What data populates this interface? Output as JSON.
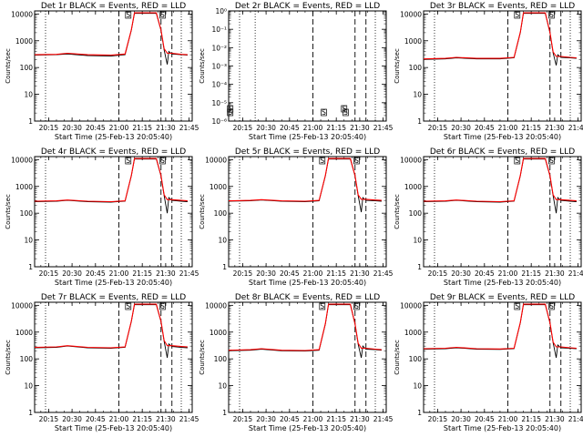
{
  "chart_data": [
    {
      "type": "line",
      "title": "Det 1r BLACK = Events, RED = LLD",
      "xlabel": "Start Time (25-Feb-13 20:05:40)",
      "ylabel": "Counts/sec",
      "ylog": true,
      "ylim": [
        1,
        13000
      ],
      "xlim": [
        "20:06",
        "21:47"
      ],
      "xticks": [
        "20:15",
        "20:30",
        "20:45",
        "21:00",
        "21:15",
        "21:30",
        "21:45"
      ],
      "yticks": [
        "1",
        "10",
        "100",
        "1000",
        "10000"
      ],
      "has_data": true,
      "dotted_lines": [
        "20:13",
        "21:40"
      ],
      "dashed_lines": [
        "21:00",
        "21:27",
        "21:34"
      ],
      "flare_markers": [
        "21:06",
        "21:28"
      ],
      "marker_symbols": [
        "S",
        "S"
      ],
      "series": [
        {
          "name": "BLACK = Events",
          "color": "#000000",
          "x": [
            "20:06",
            "20:20",
            "20:27",
            "20:40",
            "20:55",
            "21:04",
            "21:08",
            "21:10",
            "21:24",
            "21:27",
            "21:29",
            "21:31",
            "21:32",
            "21:34",
            "21:40",
            "21:44"
          ],
          "y": [
            290,
            300,
            320,
            280,
            270,
            300,
            2500,
            10500,
            10500,
            2500,
            450,
            130,
            400,
            320,
            300,
            290
          ]
        },
        {
          "name": "RED = LLD",
          "color": "#ff0000",
          "x": [
            "20:06",
            "20:20",
            "20:27",
            "20:40",
            "20:55",
            "21:04",
            "21:08",
            "21:10",
            "21:24",
            "21:27",
            "21:29",
            "21:31",
            "21:34",
            "21:40",
            "21:44"
          ],
          "y": [
            300,
            310,
            340,
            300,
            290,
            320,
            2600,
            11000,
            11000,
            2600,
            500,
            340,
            340,
            310,
            300
          ]
        }
      ]
    },
    {
      "type": "line",
      "title": "Det 2r BLACK = Events, RED = LLD",
      "xlabel": "Start Time (25-Feb-13 20:05:40)",
      "ylabel": "Counts/sec",
      "ylog": true,
      "ylim": [
        "1e-6",
        "1e0"
      ],
      "xlim": [
        "20:06",
        "21:47"
      ],
      "xticks": [
        "20:15",
        "20:30",
        "20:45",
        "21:00",
        "21:15",
        "21:30",
        "21:45"
      ],
      "yticks": [
        "10⁻⁶",
        "10⁻⁵",
        "10⁻⁴",
        "10⁻³",
        "10⁻²",
        "10⁻¹",
        "10⁰"
      ],
      "has_data": false,
      "dotted_lines": [
        "20:13",
        "20:23",
        "21:40"
      ],
      "dashed_lines": [
        "21:00",
        "21:27",
        "21:34"
      ],
      "flare_markers": [
        "20:07",
        "20:07",
        "21:07",
        "21:20",
        "21:21"
      ],
      "marker_symbols": [
        "S",
        "S",
        "S",
        "S",
        "S"
      ],
      "series": []
    },
    {
      "type": "line",
      "title": "Det 3r BLACK = Events, RED = LLD",
      "xlabel": "Start Time (25-Feb-13 20:05:40)",
      "ylabel": "Counts/sec",
      "ylog": true,
      "ylim": [
        1,
        13000
      ],
      "xlim": [
        "20:06",
        "21:47"
      ],
      "xticks": [
        "20:15",
        "20:30",
        "20:45",
        "21:00",
        "21:15",
        "21:30",
        "21:45"
      ],
      "yticks": [
        "1",
        "10",
        "100",
        "1000",
        "10000"
      ],
      "has_data": true,
      "dotted_lines": [
        "20:13",
        "21:40"
      ],
      "dashed_lines": [
        "21:00",
        "21:27",
        "21:34"
      ],
      "flare_markers": [
        "21:06",
        "21:28"
      ],
      "marker_symbols": [
        "S",
        "S"
      ],
      "series": [
        {
          "name": "BLACK = Events",
          "color": "#000000",
          "x": [
            "20:06",
            "20:20",
            "20:27",
            "20:40",
            "20:55",
            "21:04",
            "21:08",
            "21:10",
            "21:24",
            "21:27",
            "21:29",
            "21:31",
            "21:32",
            "21:34",
            "21:40",
            "21:44"
          ],
          "y": [
            200,
            210,
            230,
            210,
            210,
            230,
            2000,
            10500,
            10500,
            2000,
            350,
            120,
            300,
            240,
            230,
            220
          ]
        },
        {
          "name": "RED = LLD",
          "color": "#ff0000",
          "x": [
            "20:06",
            "20:20",
            "20:27",
            "20:40",
            "20:55",
            "21:04",
            "21:08",
            "21:10",
            "21:24",
            "21:27",
            "21:29",
            "21:31",
            "21:34",
            "21:40",
            "21:44"
          ],
          "y": [
            210,
            220,
            240,
            220,
            220,
            240,
            2100,
            11000,
            11000,
            2100,
            380,
            260,
            260,
            240,
            230
          ]
        }
      ]
    },
    {
      "type": "line",
      "title": "Det 4r BLACK = Events, RED = LLD",
      "xlabel": "Start Time (25-Feb-13 20:05:40)",
      "ylabel": "Counts/sec",
      "ylog": true,
      "ylim": [
        1,
        13000
      ],
      "xlim": [
        "20:06",
        "21:47"
      ],
      "xticks": [
        "20:15",
        "20:30",
        "20:45",
        "21:00",
        "21:15",
        "21:30",
        "21:45"
      ],
      "yticks": [
        "1",
        "10",
        "100",
        "1000",
        "10000"
      ],
      "has_data": true,
      "dotted_lines": [
        "20:13",
        "21:40"
      ],
      "dashed_lines": [
        "21:00",
        "21:27",
        "21:34"
      ],
      "flare_markers": [
        "21:06",
        "21:28"
      ],
      "marker_symbols": [
        "S",
        "S"
      ],
      "series": [
        {
          "name": "BLACK = Events",
          "color": "#000000",
          "x": [
            "20:06",
            "20:20",
            "20:27",
            "20:40",
            "20:55",
            "21:04",
            "21:08",
            "21:10",
            "21:24",
            "21:27",
            "21:29",
            "21:31",
            "21:32",
            "21:34",
            "21:40",
            "21:44"
          ],
          "y": [
            270,
            280,
            300,
            270,
            260,
            280,
            2500,
            10500,
            10500,
            2500,
            450,
            100,
            380,
            300,
            280,
            270
          ]
        },
        {
          "name": "RED = LLD",
          "color": "#ff0000",
          "x": [
            "20:06",
            "20:20",
            "20:27",
            "20:40",
            "20:55",
            "21:04",
            "21:08",
            "21:10",
            "21:24",
            "21:27",
            "21:29",
            "21:31",
            "21:34",
            "21:40",
            "21:44"
          ],
          "y": [
            280,
            290,
            310,
            280,
            270,
            290,
            2600,
            11000,
            11000,
            2600,
            480,
            320,
            320,
            300,
            290
          ]
        }
      ]
    },
    {
      "type": "line",
      "title": "Det 5r BLACK = Events, RED = LLD",
      "xlabel": "Start Time (25-Feb-13 20:05:40)",
      "ylabel": "Counts/sec",
      "ylog": true,
      "ylim": [
        1,
        13000
      ],
      "xlim": [
        "20:06",
        "21:47"
      ],
      "xticks": [
        "20:15",
        "20:30",
        "20:45",
        "21:00",
        "21:15",
        "21:30",
        "21:45"
      ],
      "yticks": [
        "1",
        "10",
        "100",
        "1000",
        "10000"
      ],
      "has_data": true,
      "dotted_lines": [
        "20:13",
        "21:40"
      ],
      "dashed_lines": [
        "21:00",
        "21:27",
        "21:34"
      ],
      "flare_markers": [
        "21:06",
        "21:28"
      ],
      "marker_symbols": [
        "S",
        "S"
      ],
      "series": [
        {
          "name": "BLACK = Events",
          "color": "#000000",
          "x": [
            "20:06",
            "20:20",
            "20:27",
            "20:40",
            "20:55",
            "21:04",
            "21:08",
            "21:10",
            "21:24",
            "21:27",
            "21:29",
            "21:31",
            "21:32",
            "21:34",
            "21:40",
            "21:44"
          ],
          "y": [
            280,
            290,
            310,
            280,
            270,
            290,
            2500,
            10500,
            10500,
            2500,
            450,
            110,
            380,
            300,
            290,
            280
          ]
        },
        {
          "name": "RED = LLD",
          "color": "#ff0000",
          "x": [
            "20:06",
            "20:20",
            "20:27",
            "20:40",
            "20:55",
            "21:04",
            "21:08",
            "21:10",
            "21:24",
            "21:27",
            "21:29",
            "21:31",
            "21:34",
            "21:40",
            "21:44"
          ],
          "y": [
            290,
            300,
            320,
            290,
            280,
            300,
            2600,
            11000,
            11000,
            2600,
            480,
            330,
            330,
            310,
            300
          ]
        }
      ]
    },
    {
      "type": "line",
      "title": "Det 6r BLACK = Events, RED = LLD",
      "xlabel": "Start Time (25-Feb-13 20:05:40)",
      "ylabel": "Counts/sec",
      "ylog": true,
      "ylim": [
        1,
        13000
      ],
      "xlim": [
        "20:06",
        "21:47"
      ],
      "xticks": [
        "20:15",
        "20:30",
        "20:45",
        "21:00",
        "21:15",
        "21:30",
        "21:45"
      ],
      "yticks": [
        "1",
        "10",
        "100",
        "1000",
        "10000"
      ],
      "has_data": true,
      "dotted_lines": [
        "20:13",
        "21:40"
      ],
      "dashed_lines": [
        "21:00",
        "21:27",
        "21:34"
      ],
      "flare_markers": [
        "21:06",
        "21:28"
      ],
      "marker_symbols": [
        "S",
        "S"
      ],
      "series": [
        {
          "name": "BLACK = Events",
          "color": "#000000",
          "x": [
            "20:06",
            "20:20",
            "20:27",
            "20:40",
            "20:55",
            "21:04",
            "21:08",
            "21:10",
            "21:24",
            "21:27",
            "21:29",
            "21:31",
            "21:32",
            "21:34",
            "21:40",
            "21:44"
          ],
          "y": [
            270,
            280,
            300,
            270,
            260,
            280,
            2500,
            10500,
            10500,
            2500,
            450,
            100,
            380,
            300,
            280,
            270
          ]
        },
        {
          "name": "RED = LLD",
          "color": "#ff0000",
          "x": [
            "20:06",
            "20:20",
            "20:27",
            "20:40",
            "20:55",
            "21:04",
            "21:08",
            "21:10",
            "21:24",
            "21:27",
            "21:29",
            "21:31",
            "21:34",
            "21:40",
            "21:44"
          ],
          "y": [
            280,
            290,
            310,
            280,
            270,
            290,
            2600,
            11000,
            11000,
            2600,
            480,
            320,
            320,
            300,
            290
          ]
        }
      ]
    },
    {
      "type": "line",
      "title": "Det 7r BLACK = Events, RED = LLD",
      "xlabel": "Start Time (25-Feb-13 20:05:40)",
      "ylabel": "Counts/sec",
      "ylog": true,
      "ylim": [
        1,
        13000
      ],
      "xlim": [
        "20:06",
        "21:47"
      ],
      "xticks": [
        "20:15",
        "20:30",
        "20:45",
        "21:00",
        "21:15",
        "21:30",
        "21:45"
      ],
      "yticks": [
        "1",
        "10",
        "100",
        "1000",
        "10000"
      ],
      "has_data": true,
      "dotted_lines": [
        "20:13",
        "21:40"
      ],
      "dashed_lines": [
        "21:00",
        "21:27",
        "21:34"
      ],
      "flare_markers": [
        "21:06",
        "21:28"
      ],
      "marker_symbols": [
        "S",
        "S"
      ],
      "series": [
        {
          "name": "BLACK = Events",
          "color": "#000000",
          "x": [
            "20:06",
            "20:20",
            "20:27",
            "20:40",
            "20:55",
            "21:04",
            "21:08",
            "21:10",
            "21:24",
            "21:27",
            "21:29",
            "21:31",
            "21:32",
            "21:34",
            "21:40",
            "21:44"
          ],
          "y": [
            260,
            270,
            300,
            260,
            250,
            270,
            2500,
            10500,
            10500,
            2500,
            450,
            110,
            360,
            290,
            270,
            260
          ]
        },
        {
          "name": "RED = LLD",
          "color": "#ff0000",
          "x": [
            "20:06",
            "20:20",
            "20:27",
            "20:40",
            "20:55",
            "21:04",
            "21:08",
            "21:10",
            "21:24",
            "21:27",
            "21:29",
            "21:31",
            "21:34",
            "21:40",
            "21:44"
          ],
          "y": [
            270,
            280,
            310,
            270,
            260,
            280,
            2600,
            11000,
            11000,
            2600,
            480,
            310,
            310,
            290,
            280
          ]
        }
      ]
    },
    {
      "type": "line",
      "title": "Det 8r BLACK = Events, RED = LLD",
      "xlabel": "Start Time (25-Feb-13 20:05:40)",
      "ylabel": "Counts/sec",
      "ylog": true,
      "ylim": [
        1,
        13000
      ],
      "xlim": [
        "20:06",
        "21:47"
      ],
      "xticks": [
        "20:15",
        "20:30",
        "20:45",
        "21:00",
        "21:15",
        "21:30",
        "21:45"
      ],
      "yticks": [
        "1",
        "10",
        "100",
        "1000",
        "10000"
      ],
      "has_data": true,
      "dotted_lines": [
        "20:13",
        "21:40"
      ],
      "dashed_lines": [
        "21:00",
        "21:27",
        "21:34"
      ],
      "flare_markers": [
        "21:06",
        "21:28"
      ],
      "marker_symbols": [
        "S",
        "S"
      ],
      "series": [
        {
          "name": "BLACK = Events",
          "color": "#000000",
          "x": [
            "20:06",
            "20:20",
            "20:27",
            "20:40",
            "20:55",
            "21:04",
            "21:08",
            "21:10",
            "21:24",
            "21:27",
            "21:29",
            "21:31",
            "21:32",
            "21:34",
            "21:40",
            "21:44"
          ],
          "y": [
            200,
            210,
            230,
            200,
            195,
            210,
            2000,
            10500,
            10500,
            2000,
            350,
            110,
            300,
            230,
            220,
            210
          ]
        },
        {
          "name": "RED = LLD",
          "color": "#ff0000",
          "x": [
            "20:06",
            "20:20",
            "20:27",
            "20:40",
            "20:55",
            "21:04",
            "21:08",
            "21:10",
            "21:24",
            "21:27",
            "21:29",
            "21:31",
            "21:34",
            "21:40",
            "21:44"
          ],
          "y": [
            210,
            220,
            240,
            210,
            205,
            220,
            2100,
            11000,
            11000,
            2100,
            380,
            250,
            250,
            230,
            220
          ]
        }
      ]
    },
    {
      "type": "line",
      "title": "Det 9r BLACK = Events, RED = LLD",
      "xlabel": "Start Time (25-Feb-13 20:05:40)",
      "ylabel": "Counts/sec",
      "ylog": true,
      "ylim": [
        1,
        13000
      ],
      "xlim": [
        "20:06",
        "21:47"
      ],
      "xticks": [
        "20:15",
        "20:30",
        "20:45",
        "21:00",
        "21:15",
        "21:30",
        "21:45"
      ],
      "yticks": [
        "1",
        "10",
        "100",
        "1000",
        "10000"
      ],
      "has_data": true,
      "dotted_lines": [
        "20:13",
        "21:40"
      ],
      "dashed_lines": [
        "21:00",
        "21:27",
        "21:34"
      ],
      "flare_markers": [
        "21:06",
        "21:28"
      ],
      "marker_symbols": [
        "S",
        "S"
      ],
      "series": [
        {
          "name": "BLACK = Events",
          "color": "#000000",
          "x": [
            "20:06",
            "20:20",
            "20:27",
            "20:40",
            "20:55",
            "21:04",
            "21:08",
            "21:10",
            "21:24",
            "21:27",
            "21:29",
            "21:31",
            "21:32",
            "21:34",
            "21:40",
            "21:44"
          ],
          "y": [
            230,
            240,
            260,
            230,
            225,
            240,
            2200,
            10500,
            10500,
            2200,
            400,
            110,
            330,
            260,
            250,
            240
          ]
        },
        {
          "name": "RED = LLD",
          "color": "#ff0000",
          "x": [
            "20:06",
            "20:20",
            "20:27",
            "20:40",
            "20:55",
            "21:04",
            "21:08",
            "21:10",
            "21:24",
            "21:27",
            "21:29",
            "21:31",
            "21:34",
            "21:40",
            "21:44"
          ],
          "y": [
            240,
            250,
            270,
            240,
            235,
            250,
            2300,
            11000,
            11000,
            2300,
            420,
            280,
            280,
            260,
            250
          ]
        }
      ]
    }
  ]
}
